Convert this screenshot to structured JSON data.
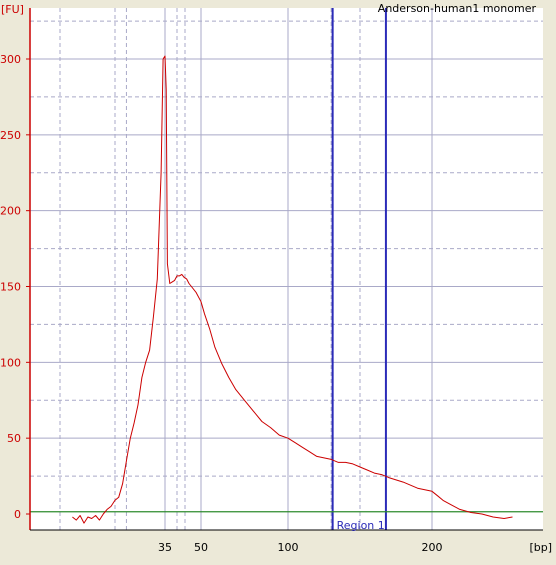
{
  "chart_data": {
    "type": "line",
    "title": "Anderson-human1 monomer",
    "xlabel": "[bp]",
    "ylabel": "[FU]",
    "ylim": [
      -10,
      325
    ],
    "y_ticks": [
      0,
      50,
      100,
      150,
      200,
      250,
      300
    ],
    "x_ticks": [
      {
        "label": "35",
        "value": 35
      },
      {
        "label": "50",
        "value": 50
      },
      {
        "label": "100",
        "value": 100
      },
      {
        "label": "200",
        "value": 200
      }
    ],
    "x_gridlines_bp": [
      25,
      35,
      40,
      50,
      100,
      130,
      150,
      200
    ],
    "grid": true,
    "colors": {
      "trace": "#cc0000",
      "baseline": "#2e8b2e",
      "region": "#2b2bb8",
      "grid": "#a9a9c8",
      "axis": "#cc0000",
      "plot_background": "#ffffff",
      "frame_background": "#ece9d8"
    },
    "region": {
      "label": "Region 1",
      "start_bp": 131,
      "end_bp": 168
    },
    "baseline_value": 1.5,
    "series": [
      {
        "x": [
          11,
          12,
          13,
          14,
          15,
          16,
          17,
          18,
          19,
          20,
          21,
          22,
          23,
          24,
          25,
          26,
          27,
          28,
          29,
          30,
          31,
          32,
          33,
          34,
          34.5,
          35,
          35.5,
          36,
          37,
          38,
          39,
          40,
          41,
          42,
          43,
          44,
          45,
          46,
          48,
          50,
          52,
          55,
          58,
          62,
          66,
          70,
          75,
          80,
          85,
          90,
          95,
          100,
          105,
          110,
          115,
          120,
          125,
          130,
          135,
          140,
          145,
          150,
          155,
          160,
          165,
          170,
          180,
          190,
          200,
          210,
          220,
          235,
          250,
          270,
          290,
          310,
          330,
          345
        ],
        "values": [
          -2,
          -4,
          -1,
          -6,
          -2,
          -3,
          -1,
          -4,
          0,
          3,
          5,
          9,
          11,
          20,
          35,
          50,
          60,
          72,
          90,
          100,
          108,
          130,
          155,
          225,
          300,
          302,
          280,
          165,
          152,
          153,
          154,
          157,
          157,
          158,
          156,
          155,
          152,
          150,
          146,
          140,
          132,
          122,
          110,
          99,
          90,
          82,
          75,
          68,
          61,
          57,
          52,
          50,
          47,
          44,
          41,
          38,
          37,
          36,
          34,
          34,
          33,
          31,
          29,
          27,
          26,
          24,
          21,
          17,
          15,
          12,
          9,
          6,
          3,
          1,
          0,
          -2,
          -3,
          -2
        ]
      }
    ]
  }
}
